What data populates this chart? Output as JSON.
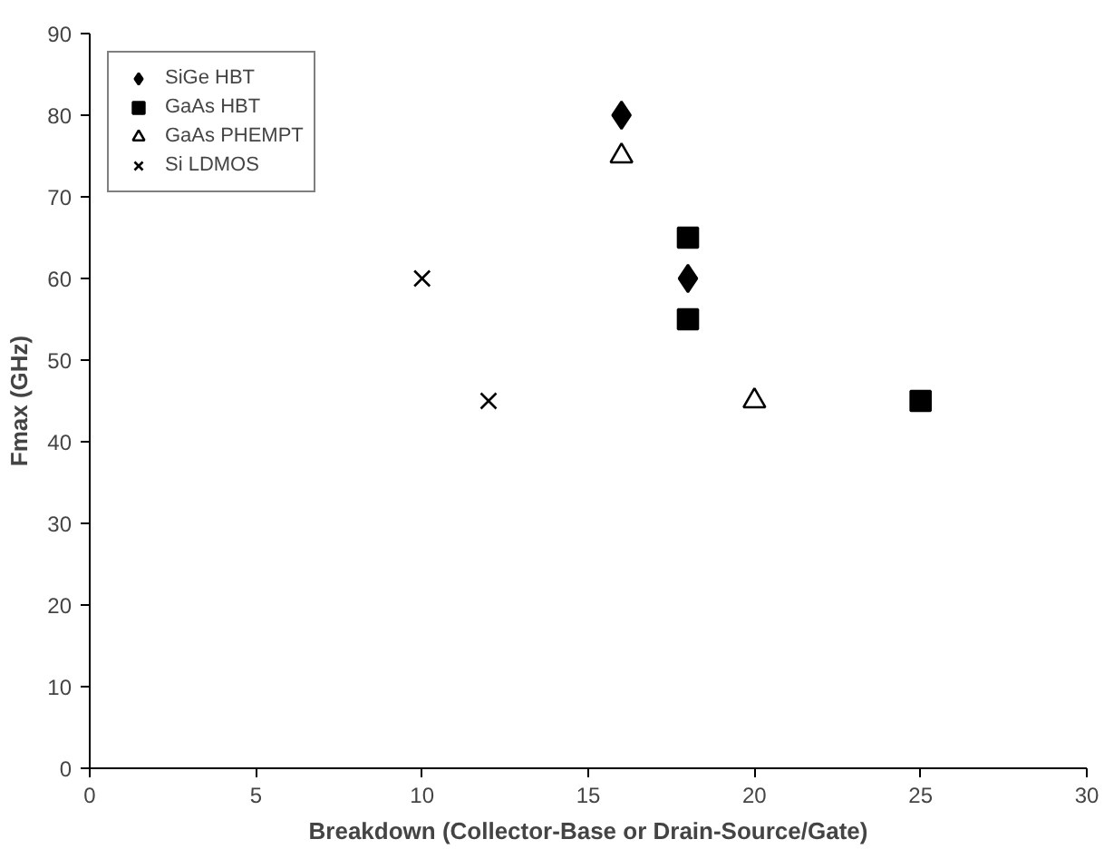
{
  "chart_data": {
    "type": "scatter",
    "xlabel": "Breakdown (Collector-Base or Drain-Source/Gate)",
    "ylabel": "Fmax (GHz)",
    "xlim": [
      0,
      30
    ],
    "xticks": [
      0,
      5,
      10,
      15,
      20,
      25,
      30
    ],
    "ylim": [
      0,
      90
    ],
    "yticks": [
      0,
      10,
      20,
      30,
      40,
      50,
      60,
      70,
      80,
      90
    ],
    "grid": false,
    "legend": "top left",
    "series": [
      {
        "name": "SiGe HBT",
        "color": "#000000",
        "marker": "diamond",
        "x": [
          16,
          18
        ],
        "values": [
          80,
          60
        ]
      },
      {
        "name": "GaAs HBT",
        "color": "#000000",
        "marker": "square",
        "x": [
          18,
          18,
          25
        ],
        "values": [
          65,
          55,
          45
        ]
      },
      {
        "name": "GaAs PHEMPT",
        "color": "#000000",
        "marker": "triangle",
        "x": [
          16,
          20
        ],
        "values": [
          75,
          45
        ]
      },
      {
        "name": "Si LDMOS",
        "color": "#000000",
        "marker": "cross",
        "x": [
          10,
          12
        ],
        "values": [
          60,
          45
        ]
      }
    ]
  }
}
